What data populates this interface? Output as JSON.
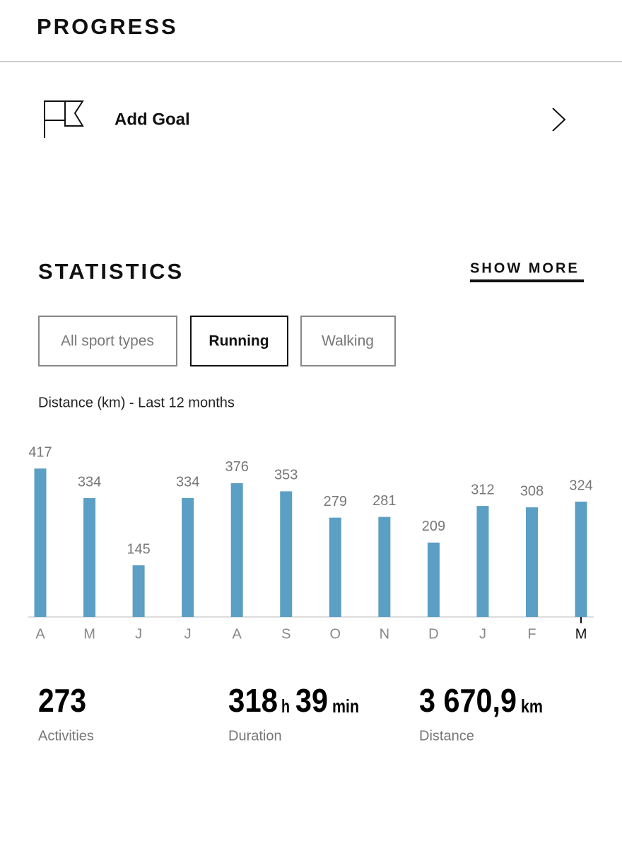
{
  "header": {
    "title": "PROGRESS"
  },
  "goal": {
    "label": "Add Goal"
  },
  "statistics": {
    "title": "STATISTICS",
    "show_more": "SHOW MORE",
    "filters": [
      "All sport types",
      "Running",
      "Walking"
    ]
  },
  "chart_data": {
    "type": "bar",
    "title": "Distance (km) - Last 12 months",
    "categories": [
      "A",
      "M",
      "J",
      "J",
      "A",
      "S",
      "O",
      "N",
      "D",
      "J",
      "F",
      "M"
    ],
    "values": [
      417,
      334,
      145,
      334,
      376,
      353,
      279,
      281,
      209,
      312,
      308,
      324
    ],
    "color": "#5b9fc4"
  },
  "summary": {
    "activities": {
      "value": 273,
      "label": "Activities"
    },
    "duration": {
      "hours": 318,
      "hours_unit": "h",
      "minutes": 39,
      "minutes_unit": "min",
      "label": "Duration"
    },
    "distance": {
      "value": "3 670,9",
      "unit": "km",
      "label": "Distance"
    }
  }
}
